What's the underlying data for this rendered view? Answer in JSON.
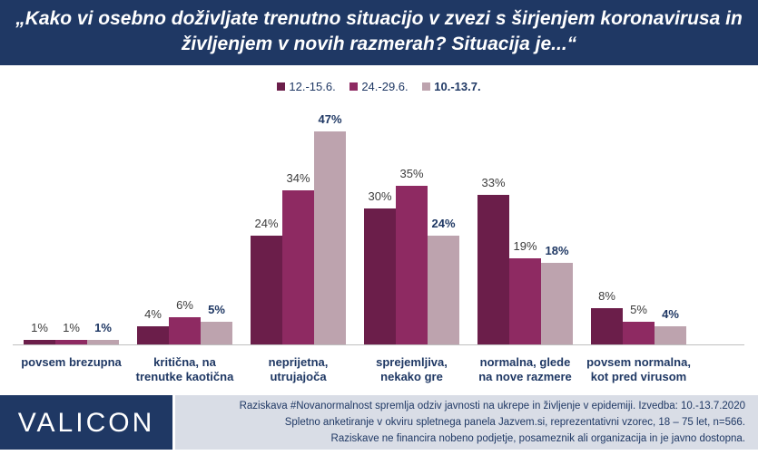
{
  "header": {
    "title_line1": "„Kako vi osebno doživljate trenutno situacijo v zvezi s širjenjem koronavirusa in",
    "title_line2": "življenjem v novih razmerah? Situacija je...“"
  },
  "colors": {
    "header_bg": "#1f3864",
    "series": [
      "#6b1e4a",
      "#8e2a62",
      "#bda3ae"
    ],
    "label_text": "#3c3c3c",
    "label_bold": "#1f3864"
  },
  "chart_data": {
    "type": "bar",
    "categories": [
      [
        "povsem brezupna"
      ],
      [
        "kritična, na",
        "trenutke kaotična"
      ],
      [
        "neprijetna,",
        "utrujajoča"
      ],
      [
        "sprejemljiva,",
        "nekako gre"
      ],
      [
        "normalna, glede",
        "na nove razmere"
      ],
      [
        "povsem normalna,",
        "kot pred virusom"
      ]
    ],
    "series": [
      {
        "name": "12.-15.6.",
        "values": [
          1,
          4,
          24,
          30,
          33,
          8
        ]
      },
      {
        "name": "24.-29.6.",
        "values": [
          1,
          6,
          34,
          35,
          19,
          5
        ]
      },
      {
        "name": "10.-13.7.",
        "values": [
          1,
          5,
          47,
          24,
          18,
          4
        ]
      }
    ],
    "value_suffix": "%",
    "bold_series_index": 2,
    "ylim": [
      0,
      50
    ],
    "legend_position": "top",
    "grid": false
  },
  "footer": {
    "logo": "VALICON",
    "note_lines": [
      "Raziskava #Novanormalnost spremlja odziv javnosti na ukrepe in življenje v epidemiji. Izvedba: 10.-13.7.2020",
      "Spletno anketiranje v okviru spletnega panela Jazvem.si, reprezentativni vzorec, 18 – 75 let, n=566.",
      "Raziskave ne financira nobeno podjetje, posameznik ali organizacija in je javno dostopna."
    ]
  }
}
